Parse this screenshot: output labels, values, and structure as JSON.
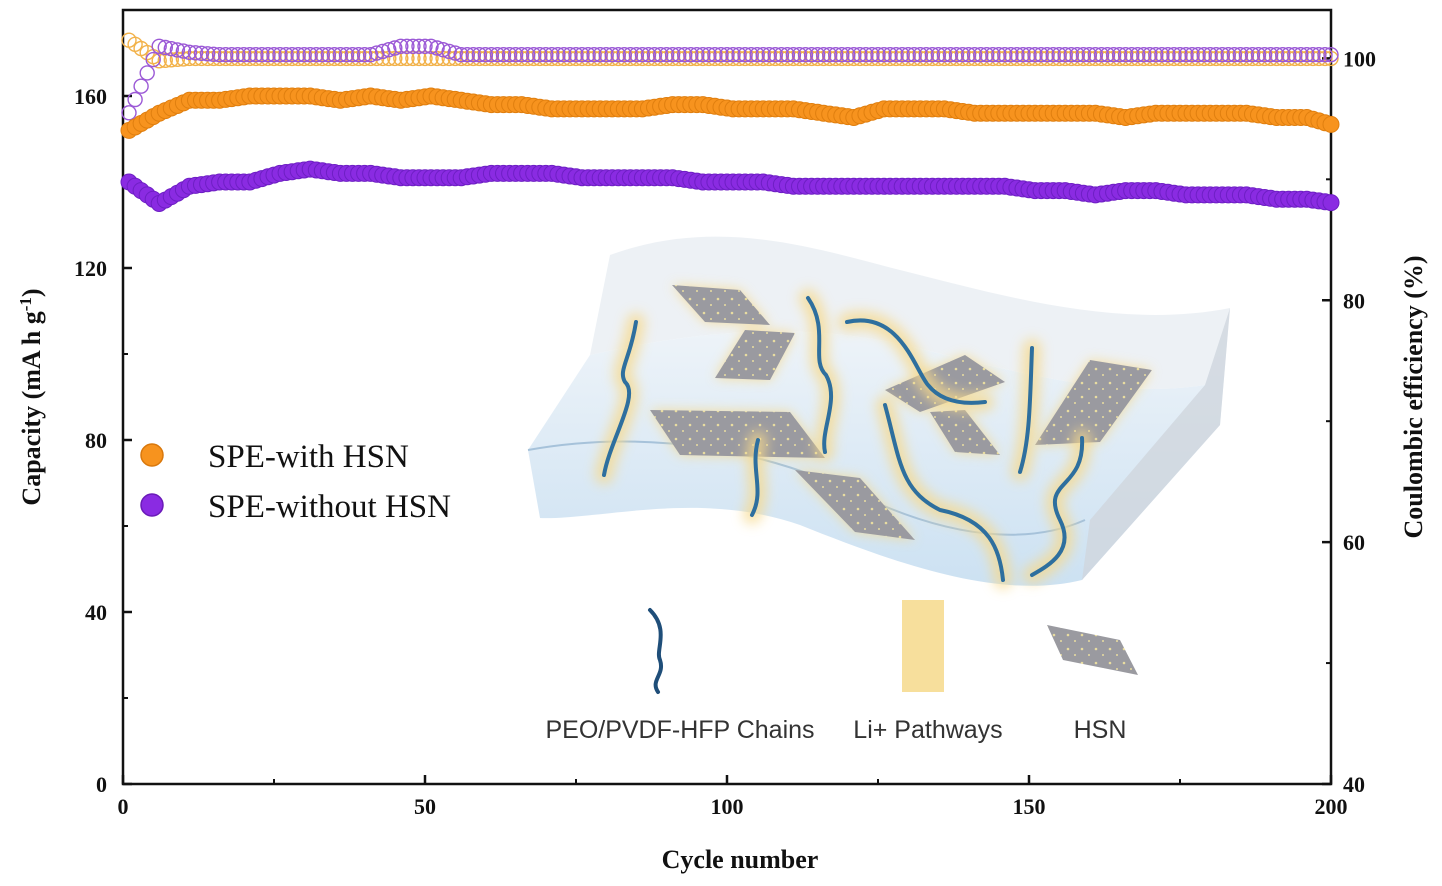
{
  "chart_data": {
    "type": "scatter",
    "xlabel": "Cycle number",
    "ylabel_left": "Capacity (mA h g",
    "ylabel_left_superscript": "-1",
    "ylabel_left_close": ")",
    "ylabel_right": "Coulombic efficiency (%)",
    "xlim": [
      0,
      200
    ],
    "ylim_left": [
      0,
      180
    ],
    "ylim_right": [
      40,
      104
    ],
    "x_ticks": [
      "0",
      "50",
      "100",
      "150",
      "200"
    ],
    "y_left_ticks": [
      "0",
      "40",
      "80",
      "120",
      "160"
    ],
    "y_right_ticks": [
      "40",
      "60",
      "80",
      "100"
    ],
    "grid": false,
    "legend_position": "middle-left",
    "legend": [
      {
        "label": "SPE-with HSN",
        "color": "#f7931e"
      },
      {
        "label": "SPE-without HSN",
        "color": "#8a2be2"
      }
    ],
    "series": [
      {
        "name": "SPE-with HSN",
        "axis": "left",
        "marker": "filled-circle",
        "color": "#f7931e",
        "x_start": 1,
        "x_step": 5,
        "values": [
          152,
          156,
          159,
          159,
          160,
          160,
          160,
          159,
          160,
          159,
          160,
          159,
          158,
          158,
          157,
          157,
          157,
          157,
          158,
          158,
          157,
          157,
          157,
          156,
          155,
          157,
          157,
          157,
          156,
          156,
          156,
          156,
          156,
          155,
          156,
          156,
          156,
          156,
          155,
          155,
          153
        ]
      },
      {
        "name": "SPE-without HSN",
        "axis": "left",
        "marker": "filled-circle",
        "color": "#8a2be2",
        "x_start": 1,
        "x_step": 5,
        "values": [
          140,
          135,
          139,
          140,
          140,
          142,
          143,
          142,
          142,
          141,
          141,
          141,
          142,
          142,
          142,
          141,
          141,
          141,
          141,
          140,
          140,
          140,
          139,
          139,
          139,
          139,
          139,
          139,
          139,
          139,
          138,
          138,
          137,
          138,
          138,
          137,
          137,
          137,
          136,
          136,
          135
        ]
      },
      {
        "name": "SPE-with HSN",
        "axis": "right",
        "marker": "open-circle",
        "color": "#f2b24a",
        "x_start": 1,
        "x_step": 5,
        "values": [
          101.5,
          99.8,
          100,
          100,
          100,
          100,
          100,
          100,
          100,
          100,
          100,
          100,
          100,
          100,
          100,
          100,
          100,
          100,
          100,
          100,
          100,
          100,
          100,
          100,
          100,
          100,
          100,
          100,
          100,
          100,
          100,
          100,
          100,
          100,
          100,
          100,
          100,
          100,
          100,
          100,
          100
        ]
      },
      {
        "name": "SPE-without HSN",
        "axis": "right",
        "marker": "open-circle",
        "color": "#9b59d6",
        "x_start": 1,
        "x_step": 5,
        "values": [
          95.5,
          101,
          100.5,
          100.3,
          100.3,
          100.3,
          100.3,
          100.3,
          100.3,
          101,
          101,
          100.3,
          100.3,
          100.3,
          100.3,
          100.3,
          100.3,
          100.3,
          100.3,
          100.3,
          100.3,
          100.3,
          100.3,
          100.3,
          100.3,
          100.3,
          100.3,
          100.3,
          100.3,
          100.3,
          100.3,
          100.3,
          100.3,
          100.3,
          100.3,
          100.3,
          100.3,
          100.3,
          100.3,
          100.3,
          100.3
        ]
      }
    ],
    "inset_labels": {
      "chains": "PEO/PVDF-HFP Chains",
      "pathways": "Li+ Pathways",
      "hsn": "HSN"
    },
    "colors": {
      "pathway_glow": "#f7d98a",
      "chain": "#2e6f9e",
      "hsn_sheet": "#9a9aa0",
      "membrane": "#bcd8ef"
    }
  }
}
